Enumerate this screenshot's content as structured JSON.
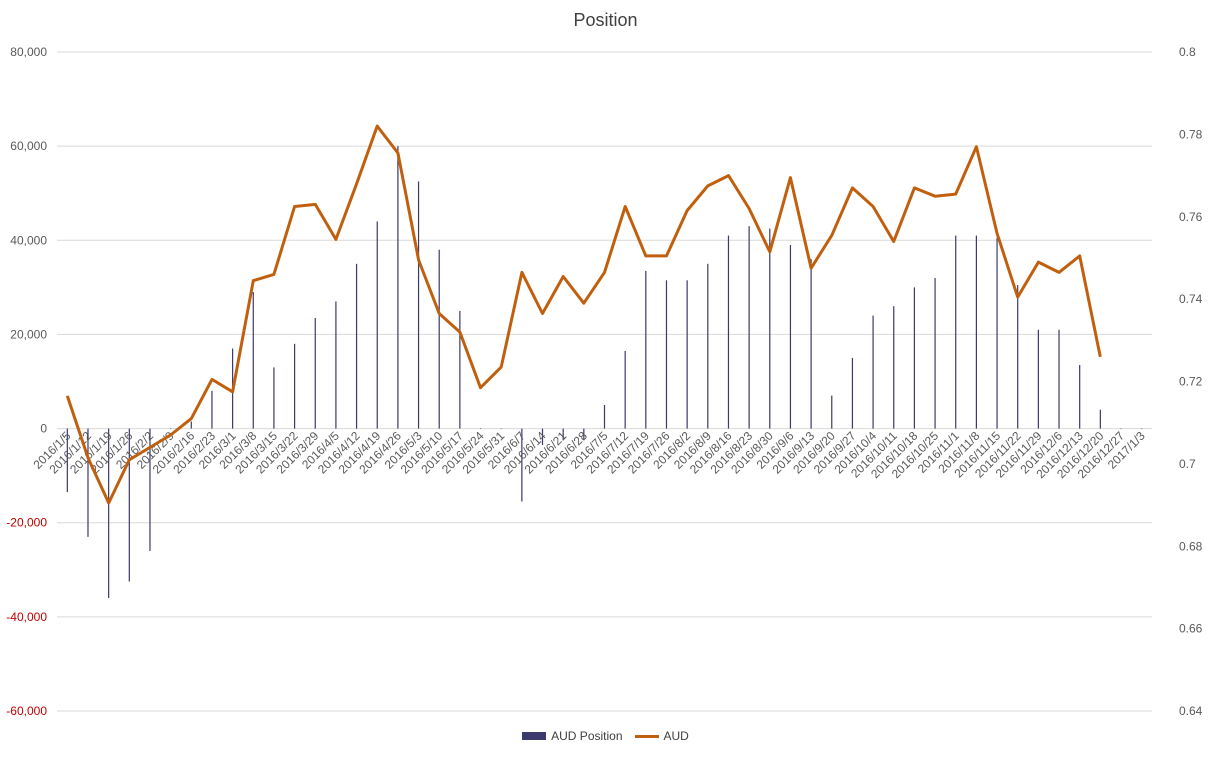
{
  "chart_data": {
    "type": "bar",
    "title": "Position",
    "xlabel": "",
    "ylabel": "",
    "y2label": "",
    "ylim": [
      -60000,
      80000
    ],
    "y2lim": [
      0.64,
      0.8
    ],
    "y_ticks": [
      "80,000",
      "60,000",
      "40,000",
      "20,000",
      "0",
      "-20,000",
      "-40,000",
      "-60,000"
    ],
    "y_tick_values": [
      80000,
      60000,
      40000,
      20000,
      0,
      -20000,
      -40000,
      -60000
    ],
    "y2_ticks": [
      "0.8",
      "0.78",
      "0.76",
      "0.74",
      "0.72",
      "0.7",
      "0.68",
      "0.66",
      "0.64"
    ],
    "y2_tick_values": [
      0.8,
      0.78,
      0.76,
      0.74,
      0.72,
      0.7,
      0.68,
      0.66,
      0.64
    ],
    "grid": true,
    "legend_position": "bottom",
    "colors": {
      "bar": "#3b3a6b",
      "line": "#c0600f",
      "negative_tick": "#c00000",
      "grid": "#d9d9d9",
      "text": "#595959"
    },
    "categories": [
      "2016/1/5",
      "2016/1/12",
      "2016/1/19",
      "2016/1/26",
      "2016/2/2",
      "2016/2/9",
      "2016/2/16",
      "2016/2/23",
      "2016/3/1",
      "2016/3/8",
      "2016/3/15",
      "2016/3/22",
      "2016/3/29",
      "2016/4/5",
      "2016/4/12",
      "2016/4/19",
      "2016/4/26",
      "2016/5/3",
      "2016/5/10",
      "2016/5/17",
      "2016/5/24",
      "2016/5/31",
      "2016/6/7",
      "2016/6/14",
      "2016/6/21",
      "2016/6/28",
      "2016/7/5",
      "2016/7/12",
      "2016/7/19",
      "2016/7/26",
      "2016/8/2",
      "2016/8/9",
      "2016/8/16",
      "2016/8/23",
      "2016/8/30",
      "2016/9/6",
      "2016/9/13",
      "2016/9/20",
      "2016/9/27",
      "2016/10/4",
      "2016/10/11",
      "2016/10/18",
      "2016/10/25",
      "2016/11/1",
      "2016/11/8",
      "2016/11/15",
      "2016/11/22",
      "2016/11/29",
      "2016/12/6",
      "2016/12/13",
      "2016/12/20",
      "2016/12/27",
      "2017/1/3"
    ],
    "series": [
      {
        "name": "AUD Position",
        "type": "bar",
        "axis": "left",
        "values": [
          -13500,
          -23000,
          -36000,
          -32500,
          -26000,
          100,
          1500,
          8000,
          17000,
          29000,
          13000,
          18000,
          23500,
          27000,
          35000,
          44000,
          60000,
          52500,
          38000,
          25000,
          100,
          -100,
          -15500,
          -3500,
          -2500,
          -2500,
          5000,
          16500,
          33500,
          31500,
          31500,
          35000,
          41000,
          43000,
          42500,
          39000,
          36000,
          7000,
          15000,
          24000,
          26000,
          30000,
          32000,
          41000,
          41000,
          40500,
          30500,
          21000,
          21000,
          13500,
          4000,
          0,
          0
        ]
      },
      {
        "name": "AUD",
        "type": "line",
        "axis": "right",
        "values": [
          0.7165,
          0.7015,
          0.6905,
          0.701,
          0.704,
          0.707,
          0.711,
          0.7205,
          0.7175,
          0.7445,
          0.746,
          0.7625,
          0.763,
          0.7545,
          0.768,
          0.782,
          0.7755,
          0.7495,
          0.7365,
          0.732,
          0.7185,
          0.7235,
          0.7465,
          0.7365,
          0.7455,
          0.739,
          0.7465,
          0.7625,
          0.7505,
          0.7505,
          0.7615,
          0.7675,
          0.77,
          0.762,
          0.7515,
          0.7695,
          0.7475,
          0.7555,
          0.767,
          0.7625,
          0.754,
          0.767,
          0.765,
          0.7655,
          0.777,
          0.756,
          0.7405,
          0.749,
          0.7465,
          0.7505,
          0.726,
          null,
          null
        ]
      }
    ]
  }
}
